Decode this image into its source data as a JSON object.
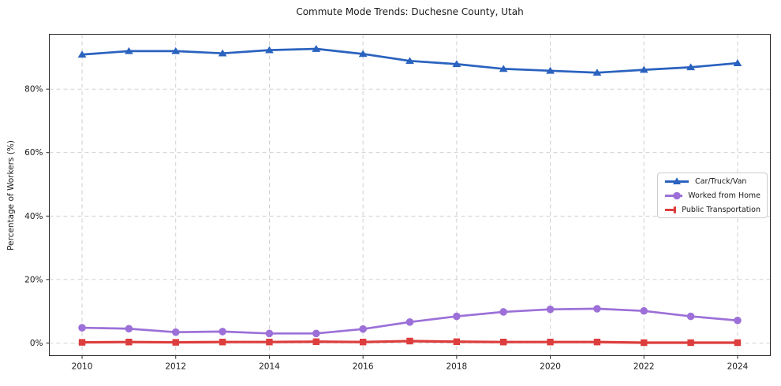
{
  "chart_data": {
    "type": "line",
    "title": "Commute Mode Trends: Duchesne County, Utah",
    "xlabel": "",
    "ylabel": "Percentage of Workers (%)",
    "x": [
      2010,
      2011,
      2012,
      2013,
      2014,
      2015,
      2016,
      2017,
      2018,
      2019,
      2020,
      2021,
      2022,
      2023,
      2024
    ],
    "series": [
      {
        "name": "Car/Truck/Van",
        "color": "#2a62bf",
        "marker": "triangle",
        "values": [
          90.9,
          92.0,
          92.0,
          91.3,
          92.3,
          92.7,
          91.1,
          88.9,
          87.9,
          86.4,
          85.8,
          85.2,
          86.1,
          86.9,
          88.2
        ]
      },
      {
        "name": "Worked from Home",
        "color": "#9c70d8",
        "marker": "circle",
        "values": [
          4.8,
          4.5,
          3.4,
          3.6,
          3.0,
          3.0,
          4.4,
          6.6,
          8.4,
          9.8,
          10.6,
          10.8,
          10.1,
          8.4,
          7.1
        ]
      },
      {
        "name": "Public Transportation",
        "color": "#dd3d3d",
        "marker": "square",
        "values": [
          0.2,
          0.3,
          0.2,
          0.3,
          0.3,
          0.4,
          0.3,
          0.6,
          0.4,
          0.3,
          0.3,
          0.3,
          0.1,
          0.1,
          0.1
        ]
      }
    ],
    "x_ticks": {
      "values": [
        2010,
        2012,
        2014,
        2016,
        2018,
        2020,
        2022,
        2024
      ],
      "labels": [
        "2010",
        "2012",
        "2014",
        "2016",
        "2018",
        "2020",
        "2022",
        "2024"
      ]
    },
    "y_ticks": {
      "values": [
        0,
        20,
        40,
        60,
        80
      ],
      "labels": [
        "0%",
        "20%",
        "40%",
        "60%",
        "80%"
      ]
    },
    "xlim": [
      2009.3,
      2024.7
    ],
    "ylim": [
      -4,
      97.3
    ],
    "grid": "dashed",
    "legend_position": "center-right"
  },
  "colors": {
    "grid": "#cbcbcb",
    "axis": "#262626",
    "text": "#1a1a1a",
    "background": "#ffffff"
  }
}
